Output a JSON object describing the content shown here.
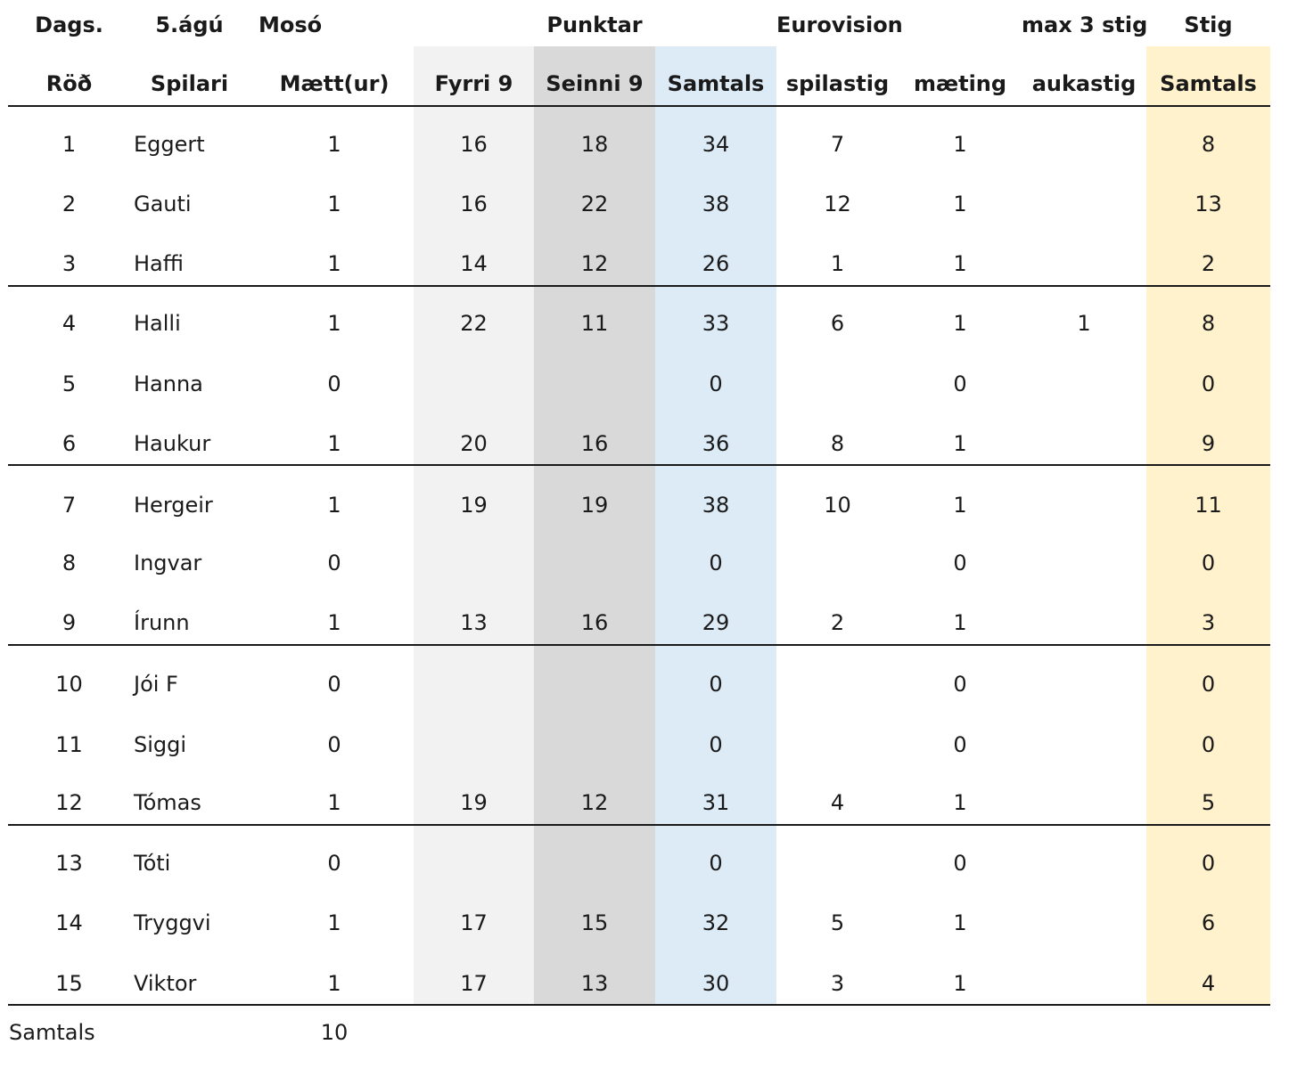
{
  "header_row_1": {
    "date_label": "Dags.",
    "date_value": "5.ágú",
    "location": "Mosó",
    "points_group": "Punktar",
    "eurovision_group": "Eurovision",
    "bonus_group": "max 3 stig",
    "score_group": "Stig"
  },
  "header_row_2": {
    "rank": "Röð",
    "player": "Spilari",
    "attended": "Mætt(ur)",
    "front_nine": "Fyrri 9",
    "back_nine": "Seinni 9",
    "points_total": "Samtals",
    "play_points": "spilastig",
    "attendance": "mæting",
    "bonus_points": "aukastig",
    "score_total": "Samtals"
  },
  "column_colors": {
    "front_nine_bg": "#f2f2f2",
    "back_nine_bg": "#d9d9d9",
    "points_total_bg": "#ddebf7",
    "score_total_bg": "#fff2cc"
  },
  "rows": [
    {
      "rank": "1",
      "player": "Eggert",
      "attended": "1",
      "front_nine": "16",
      "back_nine": "18",
      "points_total": "34",
      "play_points": "7",
      "attendance": "1",
      "bonus_points": "",
      "score_total": "8"
    },
    {
      "rank": "2",
      "player": "Gauti",
      "attended": "1",
      "front_nine": "16",
      "back_nine": "22",
      "points_total": "38",
      "play_points": "12",
      "attendance": "1",
      "bonus_points": "",
      "score_total": "13"
    },
    {
      "rank": "3",
      "player": "Haffi",
      "attended": "1",
      "front_nine": "14",
      "back_nine": "12",
      "points_total": "26",
      "play_points": "1",
      "attendance": "1",
      "bonus_points": "",
      "score_total": "2"
    },
    {
      "rank": "4",
      "player": "Halli",
      "attended": "1",
      "front_nine": "22",
      "back_nine": "11",
      "points_total": "33",
      "play_points": "6",
      "attendance": "1",
      "bonus_points": "1",
      "score_total": "8"
    },
    {
      "rank": "5",
      "player": "Hanna",
      "attended": "0",
      "front_nine": "",
      "back_nine": "",
      "points_total": "0",
      "play_points": "",
      "attendance": "0",
      "bonus_points": "",
      "score_total": "0"
    },
    {
      "rank": "6",
      "player": "Haukur",
      "attended": "1",
      "front_nine": "20",
      "back_nine": "16",
      "points_total": "36",
      "play_points": "8",
      "attendance": "1",
      "bonus_points": "",
      "score_total": "9"
    },
    {
      "rank": "7",
      "player": "Hergeir",
      "attended": "1",
      "front_nine": "19",
      "back_nine": "19",
      "points_total": "38",
      "play_points": "10",
      "attendance": "1",
      "bonus_points": "",
      "score_total": "11"
    },
    {
      "rank": "8",
      "player": "Ingvar",
      "attended": "0",
      "front_nine": "",
      "back_nine": "",
      "points_total": "0",
      "play_points": "",
      "attendance": "0",
      "bonus_points": "",
      "score_total": "0"
    },
    {
      "rank": "9",
      "player": "Írunn",
      "attended": "1",
      "front_nine": "13",
      "back_nine": "16",
      "points_total": "29",
      "play_points": "2",
      "attendance": "1",
      "bonus_points": "",
      "score_total": "3"
    },
    {
      "rank": "10",
      "player": "Jói F",
      "attended": "0",
      "front_nine": "",
      "back_nine": "",
      "points_total": "0",
      "play_points": "",
      "attendance": "0",
      "bonus_points": "",
      "score_total": "0"
    },
    {
      "rank": "11",
      "player": "Siggi",
      "attended": "0",
      "front_nine": "",
      "back_nine": "",
      "points_total": "0",
      "play_points": "",
      "attendance": "0",
      "bonus_points": "",
      "score_total": "0"
    },
    {
      "rank": "12",
      "player": "Tómas",
      "attended": "1",
      "front_nine": "19",
      "back_nine": "12",
      "points_total": "31",
      "play_points": "4",
      "attendance": "1",
      "bonus_points": "",
      "score_total": "5"
    },
    {
      "rank": "13",
      "player": "Tóti",
      "attended": "0",
      "front_nine": "",
      "back_nine": "",
      "points_total": "0",
      "play_points": "",
      "attendance": "0",
      "bonus_points": "",
      "score_total": "0"
    },
    {
      "rank": "14",
      "player": "Tryggvi",
      "attended": "1",
      "front_nine": "17",
      "back_nine": "15",
      "points_total": "32",
      "play_points": "5",
      "attendance": "1",
      "bonus_points": "",
      "score_total": "6"
    },
    {
      "rank": "15",
      "player": "Viktor",
      "attended": "1",
      "front_nine": "17",
      "back_nine": "13",
      "points_total": "30",
      "play_points": "3",
      "attendance": "1",
      "bonus_points": "",
      "score_total": "4"
    }
  ],
  "footer": {
    "label": "Samtals",
    "attended_total": "10"
  }
}
